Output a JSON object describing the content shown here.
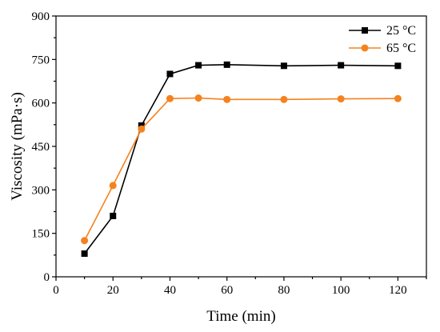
{
  "chart_data": {
    "type": "line",
    "title": "",
    "xlabel": "Time (min)",
    "ylabel": "Viscosity (mPa·s)",
    "xlim": [
      0,
      130
    ],
    "ylim": [
      0,
      900
    ],
    "xticks": [
      0,
      20,
      40,
      60,
      80,
      100,
      120
    ],
    "yticks": [
      0,
      150,
      300,
      450,
      600,
      750,
      900
    ],
    "grid": false,
    "legend_position": "top-right",
    "series": [
      {
        "name": "25 °C",
        "color": "#000000",
        "marker": "square",
        "x": [
          10,
          20,
          30,
          40,
          50,
          60,
          80,
          100,
          120
        ],
        "y": [
          80,
          210,
          522,
          700,
          730,
          732,
          728,
          730,
          728
        ]
      },
      {
        "name": "65 °C",
        "color": "#f5821f",
        "marker": "circle",
        "x": [
          10,
          20,
          30,
          40,
          50,
          60,
          80,
          100,
          120
        ],
        "y": [
          125,
          315,
          510,
          615,
          617,
          612,
          612,
          614,
          615
        ]
      }
    ]
  }
}
